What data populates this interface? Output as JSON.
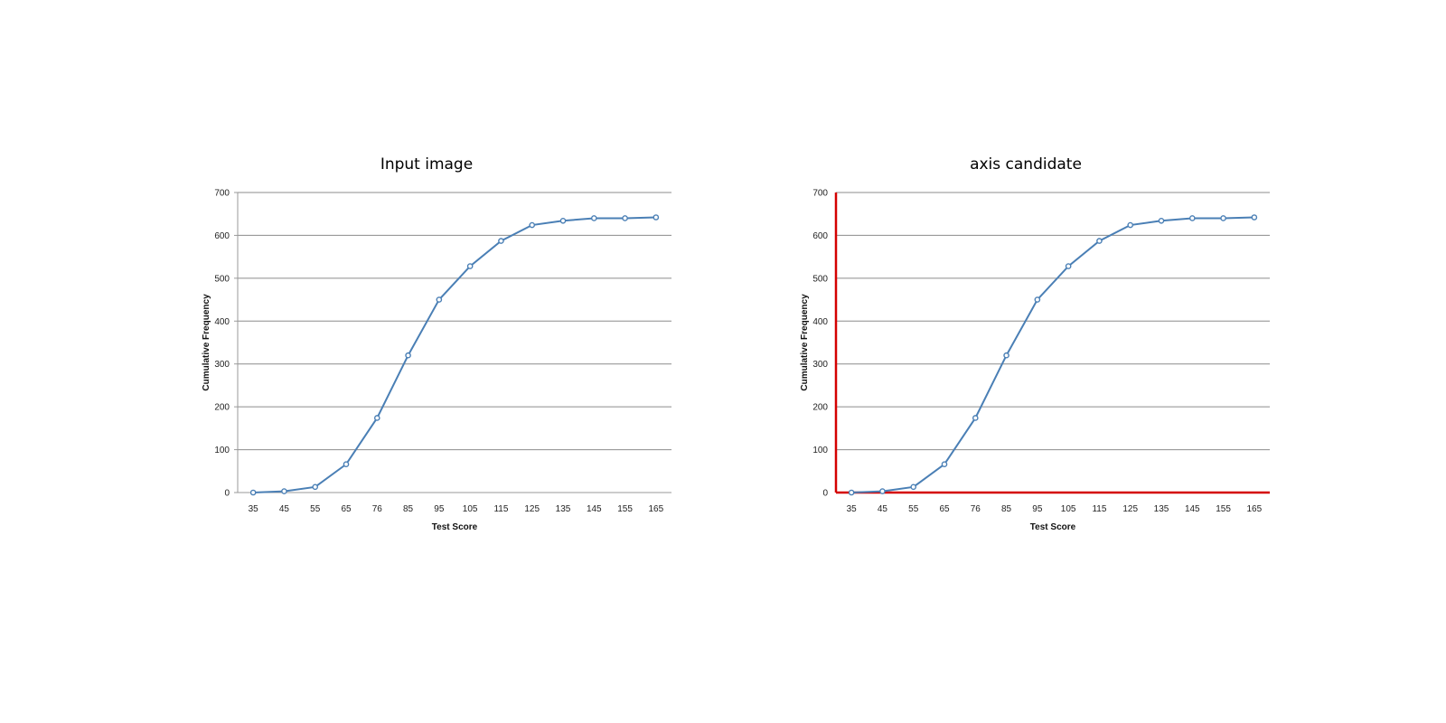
{
  "chart_data": [
    {
      "type": "line",
      "title": "Input image",
      "xlabel": "Test Score",
      "ylabel": "Cumulative Frequency",
      "categories": [
        "35",
        "45",
        "55",
        "65",
        "76",
        "85",
        "95",
        "105",
        "115",
        "125",
        "135",
        "145",
        "155",
        "165"
      ],
      "values": [
        0,
        3,
        13,
        66,
        174,
        320,
        450,
        528,
        587,
        624,
        634,
        640,
        640,
        642
      ],
      "ylim": [
        0,
        700
      ],
      "yticks": [
        0,
        100,
        200,
        300,
        400,
        500,
        600,
        700
      ],
      "grid": true,
      "line_color": "#4a7fb5",
      "axis_color": "#9a9a9a",
      "highlight_axes": false
    },
    {
      "type": "line",
      "title": "axis candidate",
      "xlabel": "Test Score",
      "ylabel": "Cumulative Frequency",
      "categories": [
        "35",
        "45",
        "55",
        "65",
        "76",
        "85",
        "95",
        "105",
        "115",
        "125",
        "135",
        "145",
        "155",
        "165"
      ],
      "values": [
        0,
        3,
        13,
        66,
        174,
        320,
        450,
        528,
        587,
        624,
        634,
        640,
        640,
        642
      ],
      "ylim": [
        0,
        700
      ],
      "yticks": [
        0,
        100,
        200,
        300,
        400,
        500,
        600,
        700
      ],
      "grid": true,
      "line_color": "#4a7fb5",
      "axis_color": "#d40000",
      "highlight_axes": true
    }
  ]
}
